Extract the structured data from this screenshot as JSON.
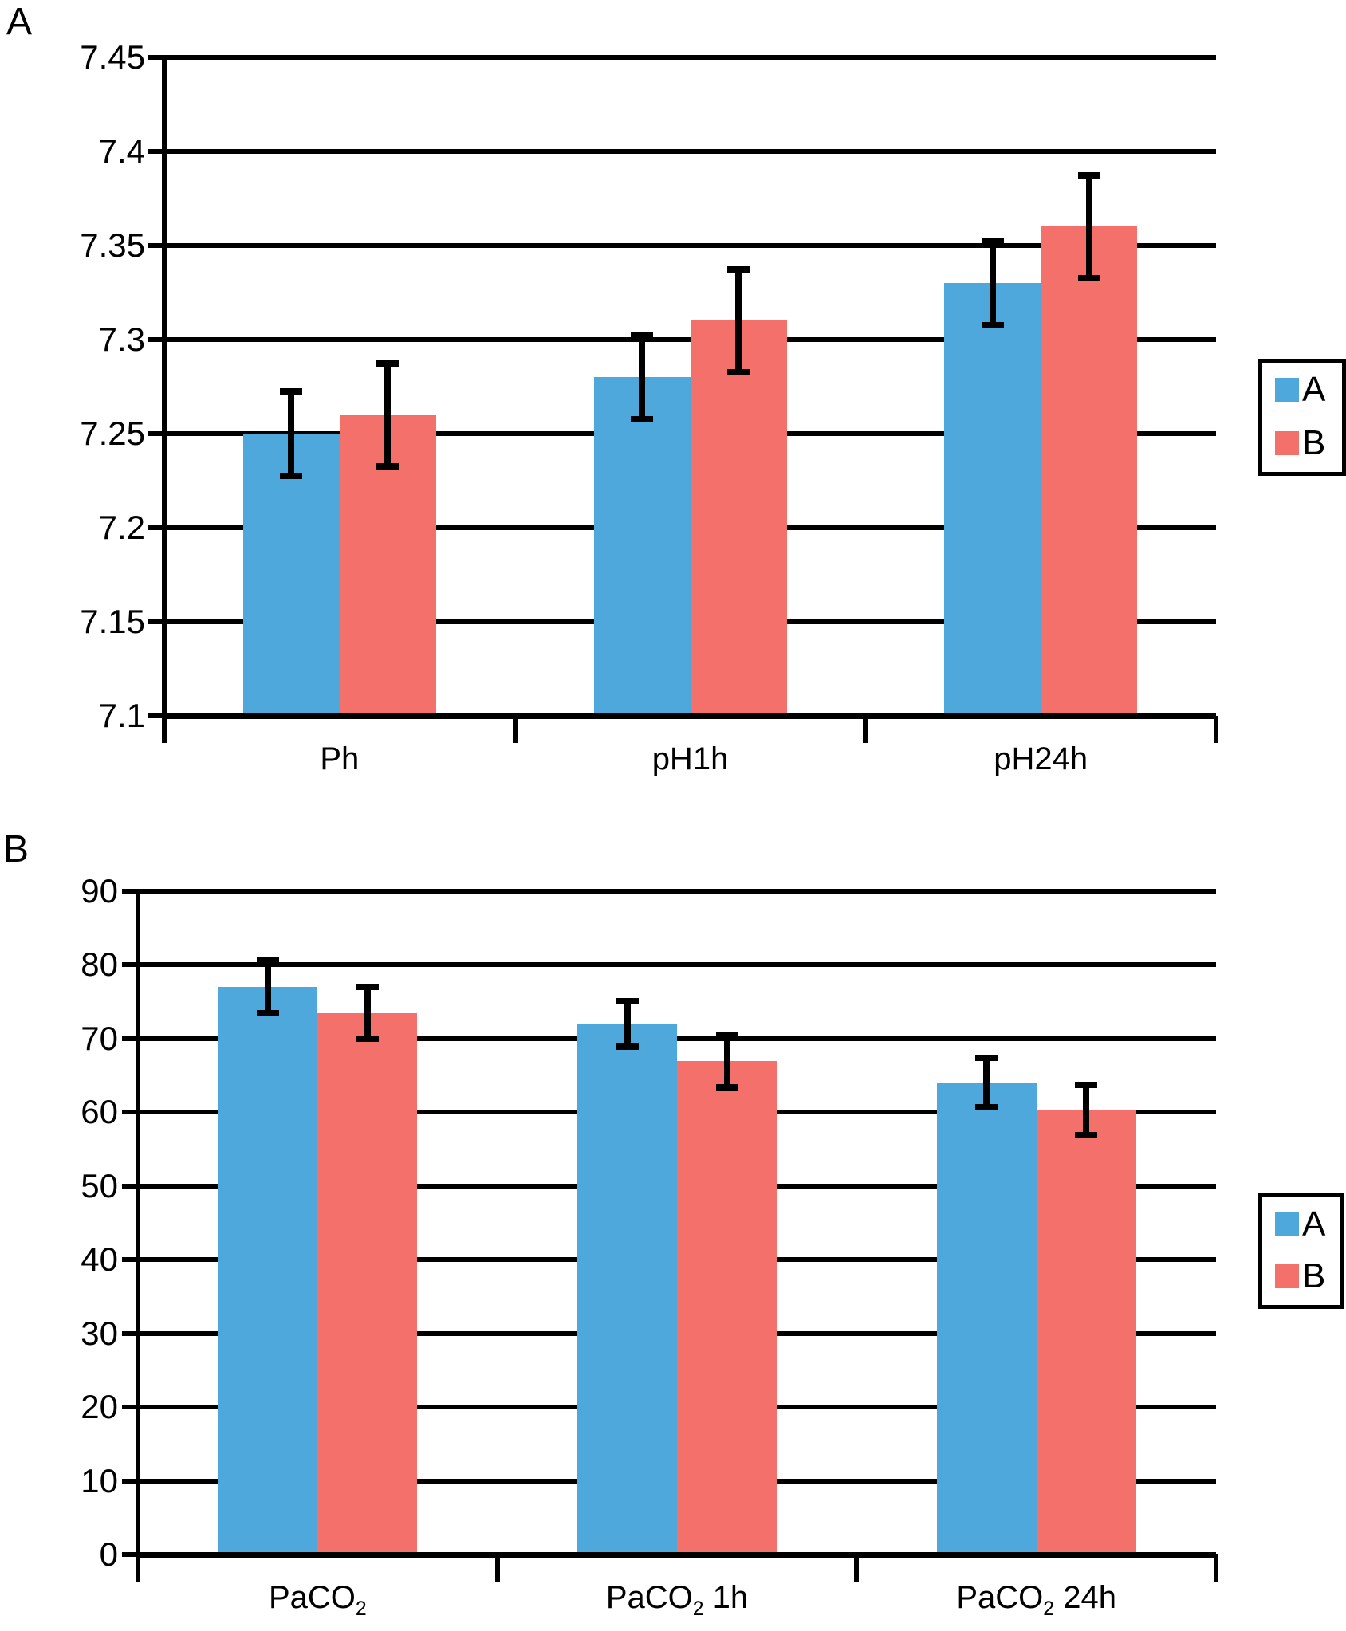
{
  "figure_background": "#ffffff",
  "line_color": "#000000",
  "chart_data": [
    {
      "type": "bar",
      "panel_label": "A",
      "title": "",
      "xlabel": "",
      "ylabel": "",
      "grid": true,
      "legend_position": "right",
      "categories": [
        {
          "base": "Ph",
          "sub": "",
          "suffix": ""
        },
        {
          "base": "pH1h",
          "sub": "",
          "suffix": ""
        },
        {
          "base": "pH24h",
          "sub": "",
          "suffix": ""
        }
      ],
      "series": [
        {
          "name": "A",
          "color": "#4FA8DC",
          "values": [
            7.25,
            7.28,
            7.33
          ],
          "errors": [
            0.024,
            0.024,
            0.024
          ]
        },
        {
          "name": "B",
          "color": "#F4716B",
          "values": [
            7.26,
            7.31,
            7.36
          ],
          "errors": [
            0.029,
            0.029,
            0.029
          ]
        }
      ],
      "ylim": [
        7.1,
        7.45
      ],
      "yticks": [
        {
          "label": "7.45",
          "value": 7.45
        },
        {
          "label": "7.4",
          "value": 7.4
        },
        {
          "label": "7.35",
          "value": 7.35
        },
        {
          "label": "7.3",
          "value": 7.3
        },
        {
          "label": "7.25",
          "value": 7.25
        },
        {
          "label": "7.2",
          "value": 7.2
        },
        {
          "label": "7.15",
          "value": 7.15
        },
        {
          "label": "7.1",
          "value": 7.1
        }
      ]
    },
    {
      "type": "bar",
      "panel_label": "B",
      "title": "",
      "xlabel": "",
      "ylabel": "",
      "grid": true,
      "legend_position": "right",
      "categories": [
        {
          "base": "PaCO",
          "sub": "2",
          "suffix": ""
        },
        {
          "base": "PaCO",
          "sub": "2",
          "suffix": " 1h"
        },
        {
          "base": "PaCO",
          "sub": "2",
          "suffix": " 24h"
        }
      ],
      "series": [
        {
          "name": "A",
          "color": "#4FA8DC",
          "values": [
            77,
            72,
            64
          ],
          "errors": [
            4,
            3.5,
            3.8
          ]
        },
        {
          "name": "B",
          "color": "#F4716B",
          "values": [
            73.5,
            67,
            60.3
          ],
          "errors": [
            3.9,
            4,
            3.8
          ]
        }
      ],
      "ylim": [
        0,
        90
      ],
      "yticks": [
        {
          "label": "90",
          "value": 90
        },
        {
          "label": "80",
          "value": 80
        },
        {
          "label": "70",
          "value": 70
        },
        {
          "label": "60",
          "value": 60
        },
        {
          "label": "50",
          "value": 50
        },
        {
          "label": "40",
          "value": 40
        },
        {
          "label": "30",
          "value": 30
        },
        {
          "label": "20",
          "value": 20
        },
        {
          "label": "10",
          "value": 10
        },
        {
          "label": "0",
          "value": 0
        }
      ]
    }
  ]
}
